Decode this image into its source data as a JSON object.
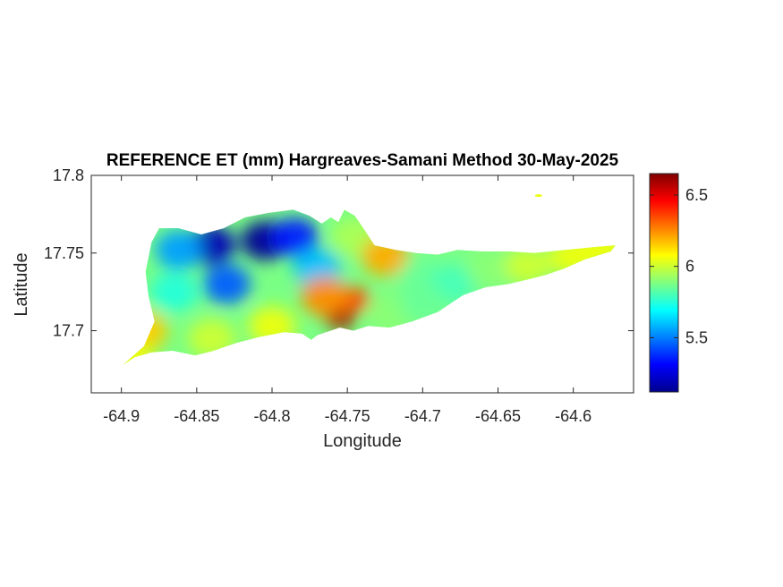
{
  "chart_data": {
    "type": "heatmap",
    "title": "REFERENCE ET (mm) Hargreaves-Samani Method  30-May-2025",
    "xlabel": "Longitude",
    "ylabel": "Latitude",
    "xlim": [
      -64.92,
      -64.56
    ],
    "ylim": [
      17.66,
      17.8
    ],
    "xticks": [
      -64.9,
      -64.85,
      -64.8,
      -64.75,
      -64.7,
      -64.65,
      -64.6
    ],
    "xtick_labels": [
      "-64.9",
      "-64.85",
      "-64.8",
      "-64.75",
      "-64.7",
      "-64.65",
      "-64.6"
    ],
    "yticks": [
      17.7,
      17.75,
      17.8
    ],
    "ytick_labels": [
      "17.7",
      "17.75",
      "17.8"
    ],
    "colorbar": {
      "colormap": "jet",
      "range": [
        5.12,
        6.65
      ],
      "ticks": [
        5.5,
        6,
        6.5
      ],
      "tick_labels": [
        "5.5",
        "6",
        "6.5"
      ]
    },
    "region": {
      "outline": [
        [
          -64.899,
          17.678
        ],
        [
          -64.885,
          17.69
        ],
        [
          -64.878,
          17.706
        ],
        [
          -64.882,
          17.722
        ],
        [
          -64.884,
          17.738
        ],
        [
          -64.88,
          17.757
        ],
        [
          -64.875,
          17.766
        ],
        [
          -64.862,
          17.766
        ],
        [
          -64.847,
          17.762
        ],
        [
          -64.832,
          17.766
        ],
        [
          -64.818,
          17.773
        ],
        [
          -64.802,
          17.776
        ],
        [
          -64.786,
          17.778
        ],
        [
          -64.775,
          17.774
        ],
        [
          -64.767,
          17.769
        ],
        [
          -64.761,
          17.773
        ],
        [
          -64.756,
          17.77
        ],
        [
          -64.752,
          17.778
        ],
        [
          -64.745,
          17.774
        ],
        [
          -64.738,
          17.764
        ],
        [
          -64.732,
          17.755
        ],
        [
          -64.718,
          17.752
        ],
        [
          -64.704,
          17.75
        ],
        [
          -64.69,
          17.749
        ],
        [
          -64.677,
          17.752
        ],
        [
          -64.66,
          17.751
        ],
        [
          -64.642,
          17.751
        ],
        [
          -64.626,
          17.75
        ],
        [
          -64.605,
          17.752
        ],
        [
          -64.584,
          17.754
        ],
        [
          -64.572,
          17.755
        ],
        [
          -64.575,
          17.751
        ],
        [
          -64.592,
          17.746
        ],
        [
          -64.606,
          17.74
        ],
        [
          -64.618,
          17.736
        ],
        [
          -64.63,
          17.733
        ],
        [
          -64.643,
          17.73
        ],
        [
          -64.658,
          17.728
        ],
        [
          -64.673,
          17.723
        ],
        [
          -64.69,
          17.712
        ],
        [
          -64.707,
          17.706
        ],
        [
          -64.722,
          17.702
        ],
        [
          -64.736,
          17.703
        ],
        [
          -64.746,
          17.7
        ],
        [
          -64.755,
          17.702
        ],
        [
          -64.764,
          17.699
        ],
        [
          -64.77,
          17.697
        ],
        [
          -64.774,
          17.694
        ],
        [
          -64.78,
          17.698
        ],
        [
          -64.792,
          17.699
        ],
        [
          -64.808,
          17.696
        ],
        [
          -64.824,
          17.692
        ],
        [
          -64.839,
          17.687
        ],
        [
          -64.851,
          17.684
        ],
        [
          -64.866,
          17.687
        ],
        [
          -64.88,
          17.686
        ],
        [
          -64.891,
          17.683
        ],
        [
          -64.899,
          17.678
        ]
      ],
      "islet": [
        -64.623,
        17.787
      ],
      "value_field": [
        {
          "lon": -64.84,
          "lat": 17.755,
          "value": 5.2
        },
        {
          "lon": -64.805,
          "lat": 17.758,
          "value": 5.15
        },
        {
          "lon": -64.785,
          "lat": 17.76,
          "value": 5.35
        },
        {
          "lon": -64.862,
          "lat": 17.752,
          "value": 5.55
        },
        {
          "lon": -64.83,
          "lat": 17.73,
          "value": 5.45
        },
        {
          "lon": -64.77,
          "lat": 17.74,
          "value": 5.6
        },
        {
          "lon": -64.865,
          "lat": 17.725,
          "value": 5.75
        },
        {
          "lon": -64.745,
          "lat": 17.76,
          "value": 5.95
        },
        {
          "lon": -64.755,
          "lat": 17.709,
          "value": 6.6
        },
        {
          "lon": -64.745,
          "lat": 17.72,
          "value": 6.35
        },
        {
          "lon": -64.765,
          "lat": 17.722,
          "value": 6.25
        },
        {
          "lon": -64.725,
          "lat": 17.748,
          "value": 6.2
        },
        {
          "lon": -64.7,
          "lat": 17.735,
          "value": 5.85
        },
        {
          "lon": -64.68,
          "lat": 17.73,
          "value": 5.8
        },
        {
          "lon": -64.655,
          "lat": 17.74,
          "value": 5.9
        },
        {
          "lon": -64.63,
          "lat": 17.742,
          "value": 6.0
        },
        {
          "lon": -64.6,
          "lat": 17.748,
          "value": 6.05
        },
        {
          "lon": -64.58,
          "lat": 17.753,
          "value": 6.05
        },
        {
          "lon": -64.885,
          "lat": 17.7,
          "value": 6.15
        },
        {
          "lon": -64.895,
          "lat": 17.682,
          "value": 6.05
        },
        {
          "lon": -64.84,
          "lat": 17.695,
          "value": 6.0
        },
        {
          "lon": -64.8,
          "lat": 17.703,
          "value": 6.05
        },
        {
          "lon": -64.72,
          "lat": 17.71,
          "value": 5.9
        },
        {
          "lon": -64.7,
          "lat": 17.718,
          "value": 5.85
        }
      ]
    }
  }
}
